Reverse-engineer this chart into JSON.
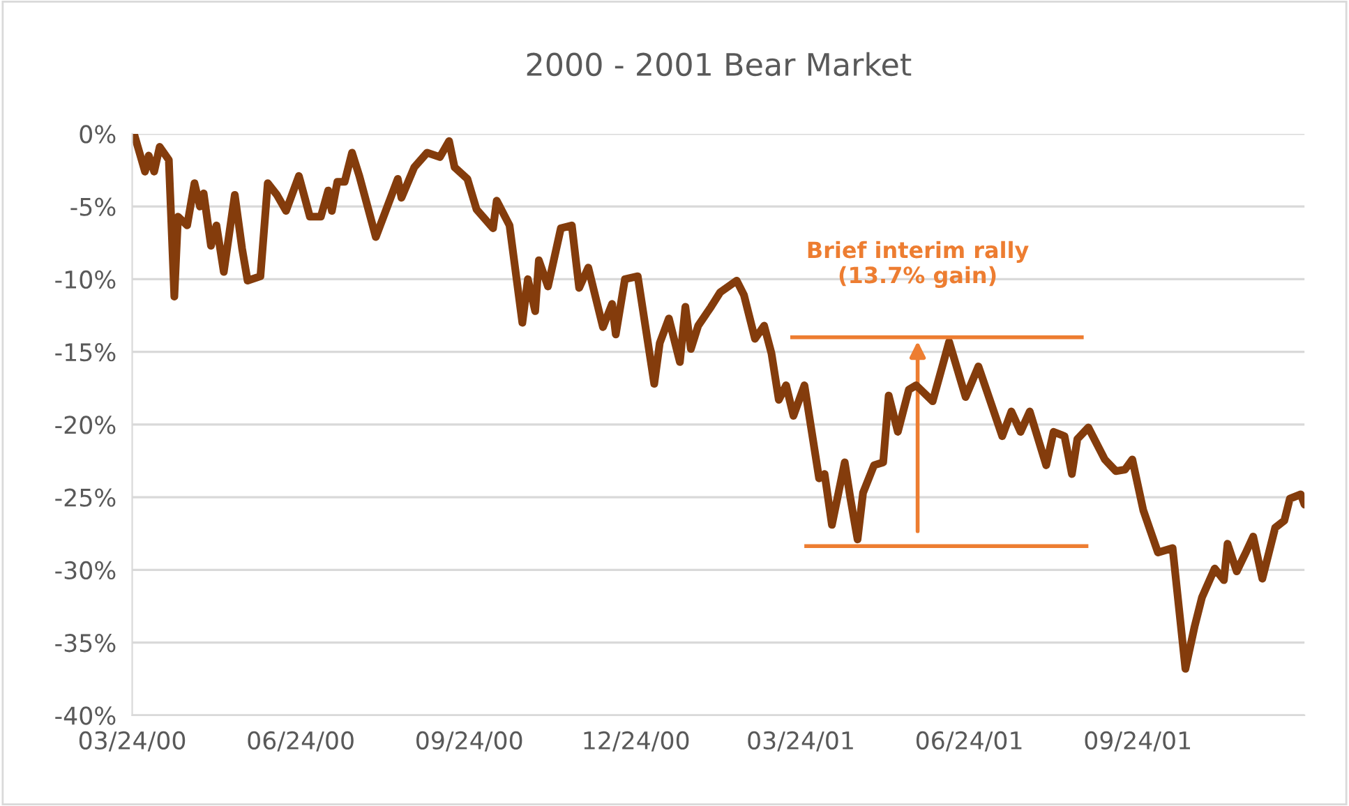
{
  "chart_data": {
    "type": "line",
    "title": "2000 - 2001 Bear Market",
    "x": [
      "2000-03-25",
      "2000-03-28",
      "2000-03-31",
      "2000-04-02",
      "2000-04-05",
      "2000-04-08",
      "2000-04-13",
      "2000-04-16",
      "2000-04-18",
      "2000-04-23",
      "2000-04-27",
      "2000-04-30",
      "2000-05-02",
      "2000-05-06",
      "2000-05-09",
      "2000-05-13",
      "2000-05-19",
      "2000-05-23",
      "2000-05-26",
      "2000-06-02",
      "2000-06-06",
      "2000-06-11",
      "2000-06-16",
      "2000-06-23",
      "2000-06-29",
      "2000-07-05",
      "2000-07-09",
      "2000-07-11",
      "2000-07-14",
      "2000-07-18",
      "2000-07-22",
      "2000-07-26",
      "2000-08-04",
      "2000-08-16",
      "2000-08-18",
      "2000-08-25",
      "2000-09-01",
      "2000-09-08",
      "2000-09-13",
      "2000-09-16",
      "2000-09-23",
      "2000-09-28",
      "2000-10-07",
      "2000-10-09",
      "2000-10-16",
      "2000-10-23",
      "2000-10-26",
      "2000-10-30",
      "2000-11-01",
      "2000-11-06",
      "2000-11-13",
      "2000-11-19",
      "2000-11-23",
      "2000-11-28",
      "2000-12-06",
      "2000-12-11",
      "2000-12-13",
      "2000-12-18",
      "2000-12-25",
      "2001-01-03",
      "2001-01-06",
      "2001-01-11",
      "2001-01-17",
      "2001-01-20",
      "2001-01-23",
      "2001-01-27",
      "2001-02-03",
      "2001-02-08",
      "2001-02-17",
      "2001-02-21",
      "2001-02-27",
      "2001-03-04",
      "2001-03-08",
      "2001-03-12",
      "2001-03-16",
      "2001-03-20",
      "2001-03-26",
      "2001-04-03",
      "2001-04-06",
      "2001-04-10",
      "2001-04-17",
      "2001-04-20",
      "2001-04-24",
      "2001-04-27",
      "2001-05-03",
      "2001-05-08",
      "2001-05-11",
      "2001-05-16",
      "2001-05-22",
      "2001-05-26",
      "2001-06-04",
      "2001-06-13",
      "2001-06-22",
      "2001-06-29",
      "2001-07-12",
      "2001-07-17",
      "2001-07-22",
      "2001-07-27",
      "2001-08-05",
      "2001-08-09",
      "2001-08-15",
      "2001-08-19",
      "2001-08-22",
      "2001-08-28",
      "2001-09-06",
      "2001-09-12",
      "2001-09-17",
      "2001-09-21",
      "2001-09-27",
      "2001-10-05",
      "2001-10-13",
      "2001-10-20",
      "2001-10-25",
      "2001-10-29",
      "2001-11-05",
      "2001-11-10",
      "2001-11-12",
      "2001-11-17",
      "2001-11-22",
      "2001-11-26",
      "2001-12-01",
      "2001-12-08",
      "2001-12-13",
      "2001-12-16",
      "2001-12-22",
      "2001-12-24"
    ],
    "series": [
      {
        "color": "#843c0c",
        "values": [
          0,
          -1.3,
          -2.6,
          -1.5,
          -2.6,
          -0.9,
          -1.8,
          -11.2,
          -5.7,
          -6.3,
          -3.4,
          -5.0,
          -4.1,
          -7.7,
          -6.3,
          -9.5,
          -4.2,
          -7.9,
          -10.1,
          -9.8,
          -3.4,
          -4.2,
          -5.3,
          -2.9,
          -5.7,
          -5.7,
          -3.9,
          -5.3,
          -3.3,
          -3.3,
          -1.3,
          -2.9,
          -7.1,
          -3.1,
          -4.4,
          -2.3,
          -1.3,
          -1.6,
          -0.5,
          -2.3,
          -3.1,
          -5.2,
          -6.5,
          -4.6,
          -6.3,
          -13.0,
          -10.0,
          -12.2,
          -8.7,
          -10.5,
          -6.5,
          -6.3,
          -10.6,
          -9.2,
          -13.3,
          -11.7,
          -13.8,
          -10.0,
          -9.8,
          -17.2,
          -14.4,
          -12.7,
          -15.7,
          -11.9,
          -14.8,
          -13.2,
          -11.9,
          -10.9,
          -10.1,
          -11.1,
          -14.1,
          -13.2,
          -15.1,
          -18.3,
          -17.3,
          -19.4,
          -17.3,
          -23.7,
          -23.4,
          -26.9,
          -22.6,
          -25.0,
          -27.9,
          -24.7,
          -22.8,
          -22.6,
          -18.0,
          -20.5,
          -17.6,
          -17.3,
          -18.4,
          -14.3,
          -18.1,
          -16.0,
          -20.8,
          -19.1,
          -20.5,
          -19.1,
          -22.8,
          -20.5,
          -20.8,
          -23.4,
          -21.0,
          -20.2,
          -22.4,
          -23.2,
          -23.1,
          -22.4,
          -25.9,
          -28.8,
          -28.5,
          -36.8,
          -33.9,
          -31.9,
          -29.9,
          -30.7,
          -28.2,
          -30.1,
          -28.8,
          -27.7,
          -30.6,
          -27.1,
          -26.6,
          -25.1,
          -24.8,
          -25.5
        ]
      }
    ],
    "xlim": [
      "2000-03-24",
      "2001-12-24"
    ],
    "xticks": [
      {
        "value": "2000-03-24",
        "label": "03/24/00"
      },
      {
        "value": "2000-06-24",
        "label": "06/24/00"
      },
      {
        "value": "2000-09-24",
        "label": "09/24/00"
      },
      {
        "value": "2000-12-24",
        "label": "12/24/00"
      },
      {
        "value": "2001-03-24",
        "label": "03/24/01"
      },
      {
        "value": "2001-06-24",
        "label": "06/24/01"
      },
      {
        "value": "2001-09-24",
        "label": "09/24/01"
      }
    ],
    "ylim": [
      -40,
      0
    ],
    "yticks": [
      {
        "value": 0,
        "label": "0%"
      },
      {
        "value": -5,
        "label": "-5%"
      },
      {
        "value": -10,
        "label": "-10%"
      },
      {
        "value": -15,
        "label": "-15%"
      },
      {
        "value": -20,
        "label": "-20%"
      },
      {
        "value": -25,
        "label": "-25%"
      },
      {
        "value": -30,
        "label": "-30%"
      },
      {
        "value": -35,
        "label": "-35%"
      },
      {
        "value": -40,
        "label": "-40%"
      }
    ],
    "grid": "y",
    "line_style": "solid",
    "marker": "none",
    "annotations": [
      "Brief interim rally\n(13.7% gain)"
    ]
  }
}
